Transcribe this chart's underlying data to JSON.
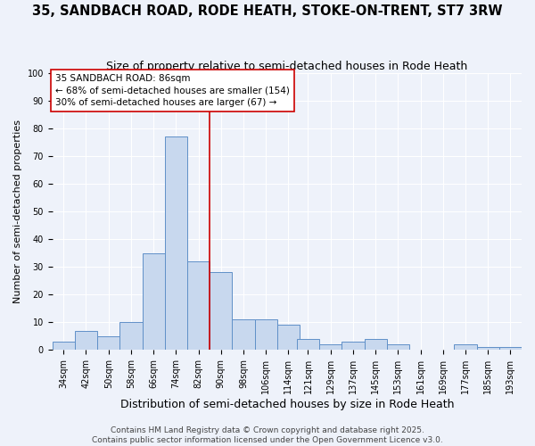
{
  "title": "35, SANDBACH ROAD, RODE HEATH, STOKE-ON-TRENT, ST7 3RW",
  "subtitle": "Size of property relative to semi-detached houses in Rode Heath",
  "xlabel": "Distribution of semi-detached houses by size in Rode Heath",
  "ylabel": "Number of semi-detached properties",
  "bin_labels": [
    "34sqm",
    "42sqm",
    "50sqm",
    "58sqm",
    "66sqm",
    "74sqm",
    "82sqm",
    "90sqm",
    "98sqm",
    "106sqm",
    "114sqm",
    "121sqm",
    "129sqm",
    "137sqm",
    "145sqm",
    "153sqm",
    "161sqm",
    "169sqm",
    "177sqm",
    "185sqm",
    "193sqm"
  ],
  "bin_lefts": [
    30,
    38,
    46,
    54,
    62,
    70,
    78,
    86,
    94,
    102,
    110,
    117,
    125,
    133,
    141,
    149,
    157,
    165,
    173,
    181,
    189
  ],
  "bin_width": 8,
  "bar_heights": [
    3,
    7,
    5,
    10,
    35,
    77,
    32,
    28,
    11,
    11,
    9,
    4,
    2,
    3,
    4,
    2,
    0,
    0,
    2,
    1,
    1
  ],
  "bar_facecolor": "#c8d8ee",
  "bar_edgecolor": "#6090c8",
  "property_size": 86,
  "vline_color": "#cc0000",
  "ann_line1": "35 SANDBACH ROAD: 86sqm",
  "ann_line2": "← 68% of semi-detached houses are smaller (154)",
  "ann_line3": "30% of semi-detached houses are larger (67) →",
  "annotation_box_edgecolor": "#cc0000",
  "annotation_box_facecolor": "#ffffff",
  "ylim": [
    0,
    100
  ],
  "xlim_left": 30,
  "xlim_right": 197,
  "background_color": "#eef2fa",
  "footer1": "Contains HM Land Registry data © Crown copyright and database right 2025.",
  "footer2": "Contains public sector information licensed under the Open Government Licence v3.0.",
  "title_fontsize": 10.5,
  "subtitle_fontsize": 9,
  "xlabel_fontsize": 9,
  "ylabel_fontsize": 8,
  "tick_fontsize": 7,
  "annotation_fontsize": 7.5,
  "footer_fontsize": 6.5
}
